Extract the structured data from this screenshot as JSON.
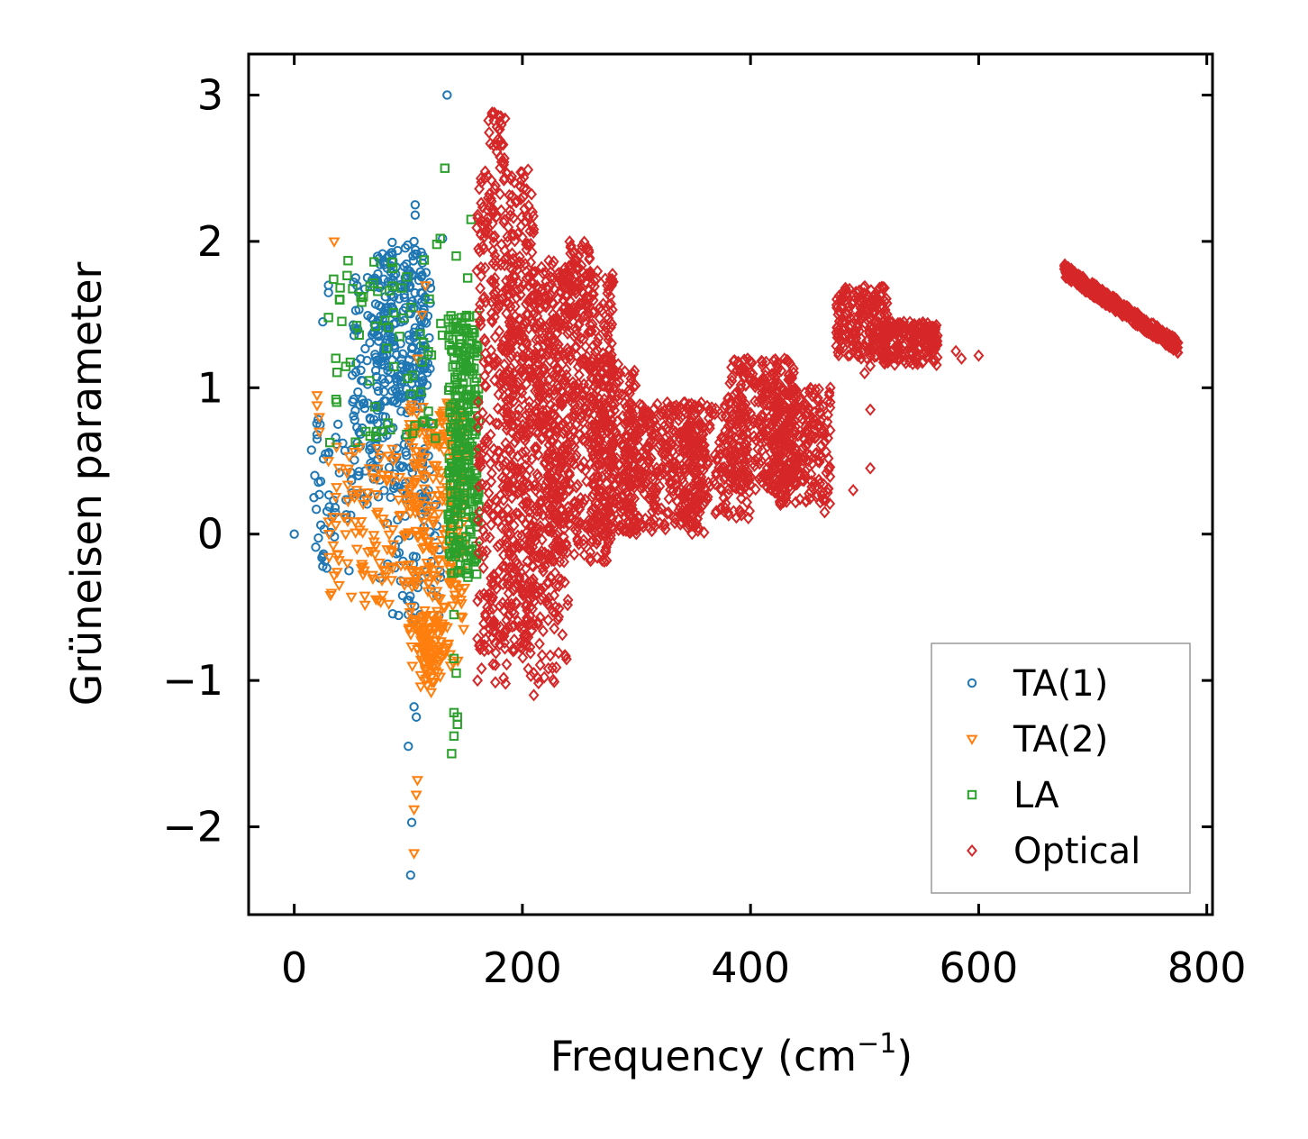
{
  "chart_data": {
    "type": "scatter",
    "title": "",
    "xlabel": "Frequency (cm",
    "xlabel_sup": "−1",
    "xlabel_close": ")",
    "ylabel": "Grüneisen parameter",
    "xlim": [
      -40,
      805
    ],
    "ylim": [
      -2.6,
      3.28
    ],
    "x_ticks": [
      0,
      200,
      400,
      600,
      800
    ],
    "y_ticks": [
      -2,
      -1,
      0,
      1,
      2,
      3
    ],
    "x_tick_labels": [
      "0",
      "200",
      "400",
      "600",
      "800"
    ],
    "y_tick_labels": [
      "−2",
      "−1",
      "0",
      "1",
      "2",
      "3"
    ],
    "legend_position": "lower-right",
    "series": [
      {
        "name": "TA(1)",
        "marker": "circle",
        "color": "#1f77b4",
        "clusters": [
          {
            "x": [
              50,
              120
            ],
            "y": [
              0.2,
              1.8
            ],
            "n": 260
          },
          {
            "x": [
              70,
              115
            ],
            "y": [
              0.9,
              2.0
            ],
            "n": 160
          },
          {
            "x": [
              15,
              50
            ],
            "y": [
              -0.25,
              0.8
            ],
            "n": 40
          },
          {
            "x": [
              80,
              130
            ],
            "y": [
              -0.6,
              0.3
            ],
            "n": 50
          }
        ],
        "points": [
          [
            0,
            0
          ],
          [
            134,
            3.0
          ],
          [
            106,
            2.25
          ],
          [
            106,
            2.18
          ],
          [
            130,
            2.02
          ],
          [
            105,
            2.0
          ],
          [
            100,
            1.72
          ],
          [
            30,
            1.7
          ],
          [
            30,
            1.65
          ],
          [
            25,
            1.45
          ],
          [
            20,
            0.68
          ],
          [
            20,
            0.65
          ],
          [
            18,
            0.4
          ],
          [
            22,
            0.27
          ],
          [
            25,
            -0.15
          ],
          [
            25,
            -0.22
          ],
          [
            48,
            -0.25
          ],
          [
            75,
            -0.3
          ],
          [
            95,
            -0.42
          ],
          [
            100,
            -0.55
          ],
          [
            105,
            -1.18
          ],
          [
            107,
            -1.25
          ],
          [
            100,
            -1.45
          ],
          [
            103,
            -1.97
          ],
          [
            102,
            -2.33
          ],
          [
            115,
            0.15
          ]
        ]
      },
      {
        "name": "TA(2)",
        "marker": "triangle-down",
        "color": "#ff7f0e",
        "clusters": [
          {
            "x": [
              100,
              150
            ],
            "y": [
              -0.9,
              0.9
            ],
            "n": 300
          },
          {
            "x": [
              30,
              110
            ],
            "y": [
              -0.5,
              0.6
            ],
            "n": 120
          },
          {
            "x": [
              110,
              130
            ],
            "y": [
              -1.05,
              -0.6
            ],
            "n": 60
          }
        ],
        "points": [
          [
            35,
            2.0
          ],
          [
            20,
            0.95
          ],
          [
            20,
            0.88
          ],
          [
            22,
            0.8
          ],
          [
            22,
            0.7
          ],
          [
            30,
            0.5
          ],
          [
            115,
            1.7
          ],
          [
            112,
            1.5
          ],
          [
            108,
            1.2
          ],
          [
            108,
            -1.68
          ],
          [
            107,
            -1.78
          ],
          [
            105,
            -1.88
          ],
          [
            105,
            -2.18
          ],
          [
            120,
            -1.08
          ],
          [
            118,
            -0.95
          ],
          [
            125,
            -0.8
          ],
          [
            60,
            -0.22
          ],
          [
            80,
            -0.25
          ],
          [
            55,
            -0.1
          ],
          [
            70,
            -0.05
          ],
          [
            45,
            0.0
          ]
        ]
      },
      {
        "name": "LA",
        "marker": "square",
        "color": "#2ca02c",
        "clusters": [
          {
            "x": [
              135,
              162
            ],
            "y": [
              -0.3,
              1.5
            ],
            "n": 300
          },
          {
            "x": [
              30,
              130
            ],
            "y": [
              0.6,
              1.9
            ],
            "n": 70
          }
        ],
        "points": [
          [
            132,
            2.5
          ],
          [
            155,
            2.15
          ],
          [
            128,
            2.02
          ],
          [
            142,
            1.9
          ],
          [
            125,
            1.98
          ],
          [
            152,
            1.75
          ],
          [
            30,
            1.48
          ],
          [
            40,
            1.6
          ],
          [
            70,
            1.86
          ],
          [
            140,
            0.1
          ],
          [
            160,
            0.05
          ],
          [
            140,
            -0.55
          ],
          [
            140,
            -0.85
          ],
          [
            142,
            -0.95
          ],
          [
            140,
            -1.22
          ],
          [
            143,
            -1.25
          ],
          [
            143,
            -1.3
          ],
          [
            140,
            -1.38
          ],
          [
            138,
            -1.5
          ]
        ]
      },
      {
        "name": "Optical",
        "marker": "diamond",
        "color": "#d62728",
        "clusters": [
          {
            "x": [
              160,
              210
            ],
            "y": [
              -0.8,
              2.5
            ],
            "n": 500
          },
          {
            "x": [
              170,
              185
            ],
            "y": [
              2.5,
              2.88
            ],
            "n": 30
          },
          {
            "x": [
              185,
              235
            ],
            "y": [
              -0.6,
              1.9
            ],
            "n": 300
          },
          {
            "x": [
              210,
              280
            ],
            "y": [
              -0.2,
              1.8
            ],
            "n": 600
          },
          {
            "x": [
              235,
              260
            ],
            "y": [
              1.5,
              2.0
            ],
            "n": 80
          },
          {
            "x": [
              260,
              300
            ],
            "y": [
              0.0,
              1.2
            ],
            "n": 250
          },
          {
            "x": [
              290,
              360
            ],
            "y": [
              0.0,
              0.9
            ],
            "n": 350
          },
          {
            "x": [
              340,
              400
            ],
            "y": [
              0.1,
              0.9
            ],
            "n": 200
          },
          {
            "x": [
              380,
              440
            ],
            "y": [
              0.3,
              1.2
            ],
            "n": 350
          },
          {
            "x": [
              420,
              470
            ],
            "y": [
              0.2,
              1.0
            ],
            "n": 250
          },
          {
            "x": [
              475,
              520
            ],
            "y": [
              1.2,
              1.7
            ],
            "n": 220
          },
          {
            "x": [
              515,
              565
            ],
            "y": [
              1.15,
              1.45
            ],
            "n": 200
          },
          {
            "x": [
              675,
              775
            ],
            "y": [
              1.28,
              1.8
            ],
            "n": 500,
            "band": true
          },
          {
            "x": [
              160,
              240
            ],
            "y": [
              -1.05,
              -0.3
            ],
            "n": 80
          }
        ],
        "points": [
          [
            210,
            -1.1
          ],
          [
            210,
            -0.95
          ],
          [
            215,
            -0.75
          ],
          [
            240,
            -0.45
          ],
          [
            490,
            0.3
          ],
          [
            505,
            0.45
          ],
          [
            505,
            0.85
          ],
          [
            470,
            1.0
          ],
          [
            500,
            1.1
          ],
          [
            505,
            1.15
          ],
          [
            585,
            1.2
          ],
          [
            580,
            1.25
          ],
          [
            600,
            1.22
          ],
          [
            465,
            0.15
          ],
          [
            270,
            -0.18
          ]
        ]
      }
    ]
  }
}
